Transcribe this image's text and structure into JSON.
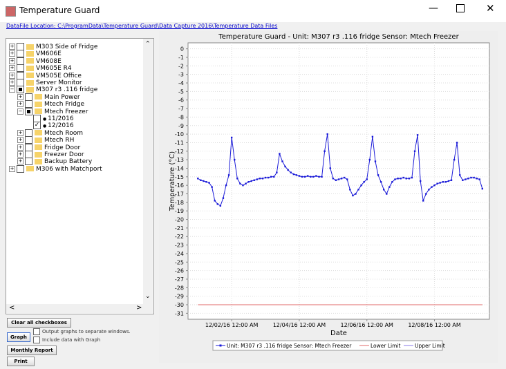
{
  "window": {
    "title": "Temperature Guard",
    "data_file_location": "DataFile Location: C:\\ProgramData\\Temperature Guard\\Data Capture 2016\\Temperature Data Files"
  },
  "tree": {
    "nodes": [
      {
        "label": "M303 Side of Fridge",
        "checked": false,
        "children": []
      },
      {
        "label": "VM606E",
        "checked": false,
        "children": []
      },
      {
        "label": "VM608E",
        "checked": false,
        "children": []
      },
      {
        "label": "VM605E R4",
        "checked": false,
        "children": []
      },
      {
        "label": "VM505E Office",
        "checked": false,
        "children": []
      },
      {
        "label": "Server Monitor",
        "checked": false,
        "children": []
      },
      {
        "label": "M307 r3 .116 fridge",
        "checked": "partial",
        "expanded": true,
        "children": [
          {
            "label": "Main Power",
            "checked": false,
            "children": []
          },
          {
            "label": "Mtech Fridge",
            "checked": false,
            "children": []
          },
          {
            "label": "Mtech Freezer",
            "checked": "partial",
            "expanded": true,
            "children": [
              {
                "label": "11/2016",
                "checked": false,
                "leaf": true
              },
              {
                "label": "12/2016",
                "checked": true,
                "leaf": true
              }
            ]
          },
          {
            "label": "Mtech Room",
            "checked": false,
            "children": []
          },
          {
            "label": "Mtech RH",
            "checked": false,
            "children": []
          },
          {
            "label": "Fridge Door",
            "checked": false,
            "children": []
          },
          {
            "label": "Freezer Door",
            "checked": false,
            "children": []
          },
          {
            "label": "Backup Battery",
            "checked": false,
            "children": []
          }
        ]
      },
      {
        "label": "M306 with Matchport",
        "checked": false,
        "children": []
      }
    ]
  },
  "controls": {
    "clear": "Clear all checkboxes",
    "graph": "Graph",
    "separate": "Output graphs to separate windows.",
    "include": "Include data with Graph",
    "monthly": "Monthly Report",
    "print": "Print"
  },
  "chart_data": {
    "type": "line",
    "title": "Temperature Guard - Unit: M307 r3 .116 fridge Sensor: Mtech Freezer",
    "x_label": "Date",
    "y_label": "Temperature (°C)",
    "grid": true,
    "ylim": [
      -31.7,
      0.7
    ],
    "yticks": [
      0,
      -1,
      -2,
      -3,
      -4,
      -5,
      -6,
      -7,
      -8,
      -9,
      -10,
      -11,
      -12,
      -13,
      -14,
      -15,
      -16,
      -17,
      -18,
      -19,
      -20,
      -21,
      -22,
      -23,
      -24,
      -25,
      -26,
      -27,
      -28,
      -29,
      -30,
      -31
    ],
    "xlim": [
      "2016-11-30 17:00",
      "2016-12-09 15:00"
    ],
    "xticks": [
      {
        "value": "2016-12-02 00:00",
        "label": "12/02/16 12:00 AM"
      },
      {
        "value": "2016-12-04 00:00",
        "label": "12/04/16 12:00 AM"
      },
      {
        "value": "2016-12-06 00:00",
        "label": "12/06/16 12:00 AM"
      },
      {
        "value": "2016-12-08 00:00",
        "label": "12/08/16 12:00 AM"
      }
    ],
    "series": [
      {
        "name": "Unit: M307 r3 .116 fridge Sensor: Mtech Freezer",
        "color": "#1a1ad8",
        "markers": true,
        "x": [
          "2016-12-01 00:00",
          "2016-12-01 02:00",
          "2016-12-01 04:00",
          "2016-12-01 06:00",
          "2016-12-01 08:00",
          "2016-12-01 10:00",
          "2016-12-01 12:00",
          "2016-12-01 14:00",
          "2016-12-01 16:00",
          "2016-12-01 18:00",
          "2016-12-01 20:00",
          "2016-12-01 22:00",
          "2016-12-02 00:00",
          "2016-12-02 02:00",
          "2016-12-02 04:00",
          "2016-12-02 06:00",
          "2016-12-02 08:00",
          "2016-12-02 10:00",
          "2016-12-02 12:00",
          "2016-12-02 14:00",
          "2016-12-02 16:00",
          "2016-12-02 18:00",
          "2016-12-02 20:00",
          "2016-12-02 22:00",
          "2016-12-03 00:00",
          "2016-12-03 02:00",
          "2016-12-03 04:00",
          "2016-12-03 06:00",
          "2016-12-03 08:00",
          "2016-12-03 10:00",
          "2016-12-03 12:00",
          "2016-12-03 14:00",
          "2016-12-03 16:00",
          "2016-12-03 18:00",
          "2016-12-03 20:00",
          "2016-12-03 22:00",
          "2016-12-04 00:00",
          "2016-12-04 02:00",
          "2016-12-04 04:00",
          "2016-12-04 06:00",
          "2016-12-04 08:00",
          "2016-12-04 10:00",
          "2016-12-04 12:00",
          "2016-12-04 14:00",
          "2016-12-04 16:00",
          "2016-12-04 18:00",
          "2016-12-04 20:00",
          "2016-12-04 22:00",
          "2016-12-05 00:00",
          "2016-12-05 02:00",
          "2016-12-05 04:00",
          "2016-12-05 06:00",
          "2016-12-05 08:00",
          "2016-12-05 10:00",
          "2016-12-05 12:00",
          "2016-12-05 14:00",
          "2016-12-05 16:00",
          "2016-12-05 18:00",
          "2016-12-05 20:00",
          "2016-12-05 22:00",
          "2016-12-06 00:00",
          "2016-12-06 02:00",
          "2016-12-06 04:00",
          "2016-12-06 06:00",
          "2016-12-06 08:00",
          "2016-12-06 10:00",
          "2016-12-06 12:00",
          "2016-12-06 14:00",
          "2016-12-06 16:00",
          "2016-12-06 18:00",
          "2016-12-06 20:00",
          "2016-12-06 22:00",
          "2016-12-07 00:00",
          "2016-12-07 02:00",
          "2016-12-07 04:00",
          "2016-12-07 06:00",
          "2016-12-07 08:00",
          "2016-12-07 10:00",
          "2016-12-07 12:00",
          "2016-12-07 14:00",
          "2016-12-07 16:00",
          "2016-12-07 18:00",
          "2016-12-07 20:00",
          "2016-12-07 22:00",
          "2016-12-08 00:00",
          "2016-12-08 02:00",
          "2016-12-08 04:00",
          "2016-12-08 06:00",
          "2016-12-08 08:00",
          "2016-12-08 10:00",
          "2016-12-08 12:00",
          "2016-12-08 14:00",
          "2016-12-08 16:00",
          "2016-12-08 18:00",
          "2016-12-08 20:00",
          "2016-12-08 22:00",
          "2016-12-09 00:00",
          "2016-12-09 02:00",
          "2016-12-09 04:00",
          "2016-12-09 06:00",
          "2016-12-09 08:00",
          "2016-12-09 10:00"
        ],
        "values": [
          -15.2,
          -15.4,
          -15.5,
          -15.6,
          -15.7,
          -16.2,
          -17.8,
          -18.2,
          -18.4,
          -17.5,
          -16.0,
          -14.8,
          -10.4,
          -13.0,
          -15.2,
          -15.8,
          -16.0,
          -15.8,
          -15.6,
          -15.5,
          -15.4,
          -15.3,
          -15.2,
          -15.2,
          -15.1,
          -15.1,
          -15.0,
          -15.0,
          -14.5,
          -12.3,
          -13.2,
          -13.8,
          -14.2,
          -14.5,
          -14.7,
          -14.8,
          -14.9,
          -15.0,
          -15.0,
          -14.9,
          -15.0,
          -15.0,
          -14.9,
          -15.0,
          -15.0,
          -12.0,
          -10.0,
          -14.0,
          -15.2,
          -15.4,
          -15.3,
          -15.2,
          -15.1,
          -15.3,
          -16.5,
          -17.2,
          -17.0,
          -16.5,
          -16.0,
          -15.6,
          -15.3,
          -13.0,
          -10.3,
          -13.2,
          -14.8,
          -15.6,
          -16.5,
          -17.0,
          -16.2,
          -15.6,
          -15.3,
          -15.2,
          -15.2,
          -15.1,
          -15.2,
          -15.2,
          -15.1,
          -12.0,
          -10.1,
          -15.5,
          -17.8,
          -17.0,
          -16.5,
          -16.2,
          -16.0,
          -15.8,
          -15.7,
          -15.6,
          -15.6,
          -15.5,
          -15.4,
          -13.0,
          -11.0,
          -14.8,
          -15.4,
          -15.3,
          -15.2,
          -15.1,
          -15.1,
          -15.2,
          -15.3,
          -16.4
        ]
      },
      {
        "name": "Lower Limit",
        "color": "#e06868",
        "x": [
          "2016-12-01 00:00",
          "2016-12-09 10:00"
        ],
        "values": [
          -30,
          -30
        ]
      },
      {
        "name": "Upper Limit",
        "color": "#8878e8",
        "x": [],
        "values": []
      }
    ]
  }
}
